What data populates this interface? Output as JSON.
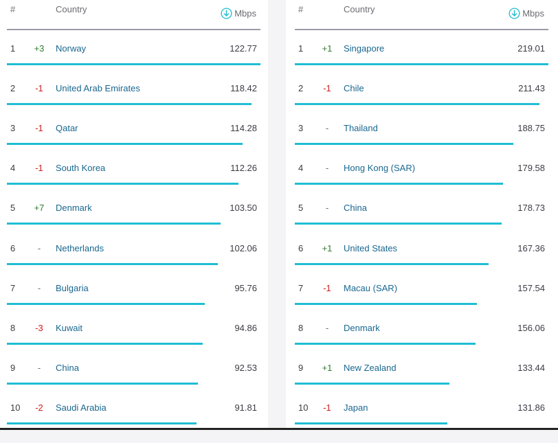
{
  "header": {
    "rank_label": "#",
    "country_label": "Country",
    "unit_label": "Mbps"
  },
  "colors": {
    "accent": "#1fbdd3",
    "country_link": "#19678f",
    "up": "#2f7d2f",
    "down": "#d01c1c"
  },
  "left": {
    "max_speed": 122.77,
    "rows": [
      {
        "rank": "1",
        "change": "+3",
        "dir": "up",
        "country": "Norway",
        "speed": "122.77"
      },
      {
        "rank": "2",
        "change": "-1",
        "dir": "down",
        "country": "United Arab Emirates",
        "speed": "118.42"
      },
      {
        "rank": "3",
        "change": "-1",
        "dir": "down",
        "country": "Qatar",
        "speed": "114.28"
      },
      {
        "rank": "4",
        "change": "-1",
        "dir": "down",
        "country": "South Korea",
        "speed": "112.26"
      },
      {
        "rank": "5",
        "change": "+7",
        "dir": "up",
        "country": "Denmark",
        "speed": "103.50"
      },
      {
        "rank": "6",
        "change": "-",
        "dir": "same",
        "country": "Netherlands",
        "speed": "102.06"
      },
      {
        "rank": "7",
        "change": "-",
        "dir": "same",
        "country": "Bulgaria",
        "speed": "95.76"
      },
      {
        "rank": "8",
        "change": "-3",
        "dir": "down",
        "country": "Kuwait",
        "speed": "94.86"
      },
      {
        "rank": "9",
        "change": "-",
        "dir": "same",
        "country": "China",
        "speed": "92.53"
      },
      {
        "rank": "10",
        "change": "-2",
        "dir": "down",
        "country": "Saudi Arabia",
        "speed": "91.81"
      }
    ]
  },
  "right": {
    "max_speed": 219.01,
    "rows": [
      {
        "rank": "1",
        "change": "+1",
        "dir": "up",
        "country": "Singapore",
        "speed": "219.01"
      },
      {
        "rank": "2",
        "change": "-1",
        "dir": "down",
        "country": "Chile",
        "speed": "211.43"
      },
      {
        "rank": "3",
        "change": "-",
        "dir": "same",
        "country": "Thailand",
        "speed": "188.75"
      },
      {
        "rank": "4",
        "change": "-",
        "dir": "same",
        "country": "Hong Kong (SAR)",
        "speed": "179.58"
      },
      {
        "rank": "5",
        "change": "-",
        "dir": "same",
        "country": "China",
        "speed": "178.73"
      },
      {
        "rank": "6",
        "change": "+1",
        "dir": "up",
        "country": "United States",
        "speed": "167.36"
      },
      {
        "rank": "7",
        "change": "-1",
        "dir": "down",
        "country": "Macau (SAR)",
        "speed": "157.54"
      },
      {
        "rank": "8",
        "change": "-",
        "dir": "same",
        "country": "Denmark",
        "speed": "156.06"
      },
      {
        "rank": "9",
        "change": "+1",
        "dir": "up",
        "country": "New Zealand",
        "speed": "133.44"
      },
      {
        "rank": "10",
        "change": "-1",
        "dir": "down",
        "country": "Japan",
        "speed": "131.86"
      }
    ]
  }
}
